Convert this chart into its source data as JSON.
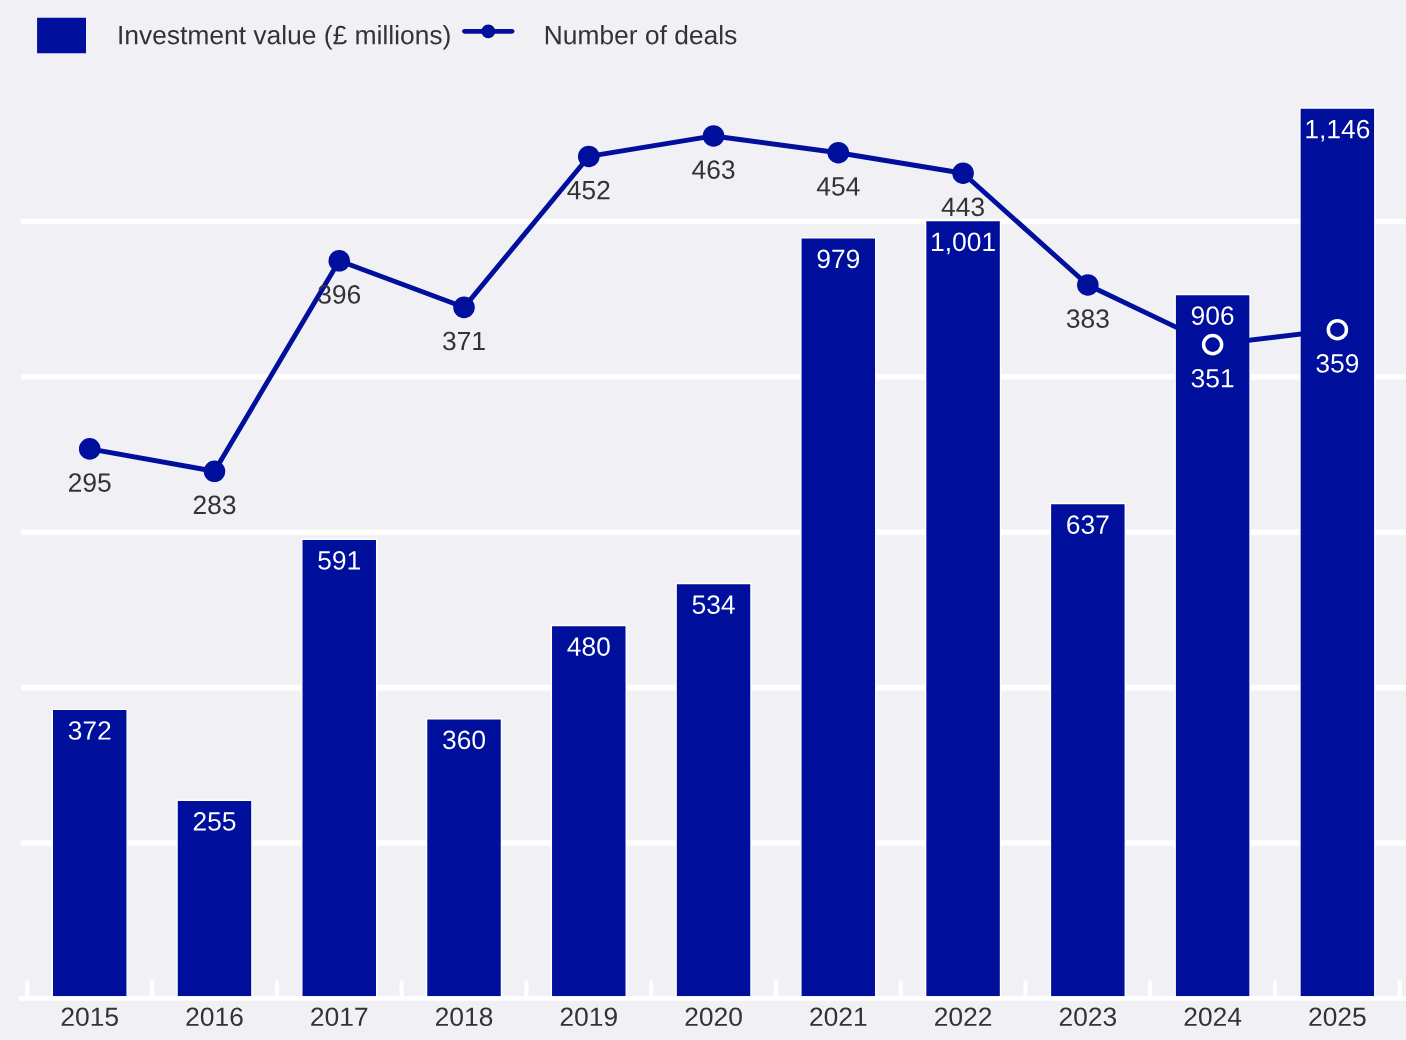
{
  "chart_data": {
    "type": "bar",
    "categories": [
      "2015",
      "2016",
      "2017",
      "2018",
      "2019",
      "2020",
      "2021",
      "2022",
      "2023",
      "2024",
      "2025"
    ],
    "series": [
      {
        "name": "Investment value (£ millions)",
        "color": "#00109c",
        "values": [
          372,
          255,
          591,
          360,
          480,
          534,
          979,
          1001,
          637,
          906,
          1146
        ],
        "value_labels": [
          "372",
          "255",
          "591",
          "360",
          "480",
          "534",
          "979",
          "1,001",
          "637",
          "906",
          "1,146"
        ]
      },
      {
        "name": "Number of deals",
        "type": "line",
        "axis": "y2",
        "color": "#00109c",
        "marker": "circle",
        "line_style": "solid",
        "values": [
          295,
          283,
          396,
          371,
          452,
          463,
          454,
          443,
          383,
          351,
          359
        ]
      }
    ],
    "ylim": [
      0,
      1285
    ],
    "yticks": [
      {
        "value": 200,
        "label": null
      },
      {
        "value": 400,
        "label": null
      },
      {
        "value": 600,
        "label": null
      },
      {
        "value": 800,
        "label": null
      },
      {
        "value": 1000,
        "label": null
      }
    ],
    "y2lim": [
      0,
      536
    ],
    "tick_labels": "x",
    "grid": "y",
    "legend": "top left",
    "data_labels": true
  }
}
